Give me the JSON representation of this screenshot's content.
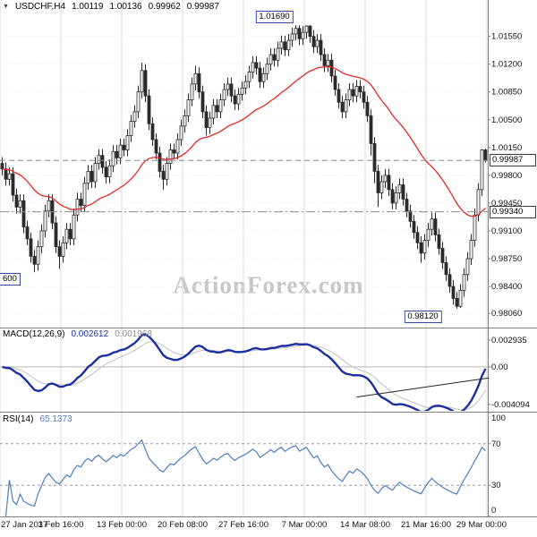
{
  "header": {
    "dropdown_icon": "▼",
    "symbol_period": "USDCHF,H4",
    "open": "1.00119",
    "high": "1.00136",
    "low": "0.99962",
    "close": "0.99987"
  },
  "watermark": "ActionForex.com",
  "indicators": {
    "macd": {
      "name": "MACD(12,26,9)",
      "value_main": "0.002612",
      "value_signal": "0.001968"
    },
    "rsi": {
      "name": "RSI(14)",
      "value": "65.1373"
    }
  },
  "annotations": {
    "swing_high": "1.01690",
    "swing_low": "0.98120",
    "left_level_partial": "600",
    "current_price": "0.99987",
    "dashed_level": "0.99340"
  },
  "axes": {
    "price_ticks": [
      "1.01550",
      "1.01200",
      "1.00850",
      "1.00500",
      "1.00150",
      "0.99800",
      "0.99450",
      "0.99100",
      "0.98750",
      "0.98400",
      "0.98060"
    ],
    "macd_ticks": [
      "0.002935",
      "0.00",
      "-0.004094"
    ],
    "rsi_ticks": [
      "100",
      "70",
      "30",
      "0"
    ],
    "time_labels": [
      "27 Jan 2017",
      "3 Feb 16:00",
      "13 Feb 00:00",
      "20 Feb 08:00",
      "27 Feb 16:00",
      "7 Mar 00:00",
      "14 Mar 08:00",
      "21 Mar 16:00",
      "29 Mar 00:00"
    ]
  },
  "colors": {
    "up": "#ffffff",
    "down": "#2a2a2a",
    "outline": "#2a2a2a",
    "ma": "#e02828",
    "macd": "#1a2fa0",
    "signal": "#c0c0c0",
    "rsi": "#4a7ebf",
    "grid": "#dddddd",
    "separator": "#808080",
    "dashed": "#8c8c8c",
    "box_border": "#3949ab",
    "watermark": "#c6c6c6"
  },
  "chart_data": {
    "type": "candlestick",
    "symbol": "USDCHF",
    "timeframe": "H4",
    "price_range": [
      0.9795,
      1.0185
    ],
    "time_label_indices": [
      0,
      17,
      34,
      51,
      68,
      85,
      102,
      119,
      136
    ],
    "levels": {
      "current_price": 0.99987,
      "dashed_level": 0.9934,
      "swing_high": 1.0169,
      "swing_low": 0.9812,
      "left_level": 0.986
    },
    "overlays": [
      {
        "name": "moving-average",
        "color": "#e02828"
      }
    ],
    "candles_ohlc": [
      [
        0.9995,
        1.0003,
        0.998,
        0.9988
      ],
      [
        0.9988,
        0.9996,
        0.9967,
        0.9975
      ],
      [
        0.9975,
        0.999,
        0.9967,
        0.9982
      ],
      [
        0.9982,
        0.999,
        0.9947,
        0.9955
      ],
      [
        0.9955,
        0.9963,
        0.9932,
        0.994
      ],
      [
        0.994,
        0.9956,
        0.9932,
        0.9948
      ],
      [
        0.9948,
        0.9956,
        0.9907,
        0.9915
      ],
      [
        0.9915,
        0.9923,
        0.9892,
        0.99
      ],
      [
        0.99,
        0.9908,
        0.987,
        0.9878
      ],
      [
        0.9878,
        0.9886,
        0.9858,
        0.9868
      ],
      [
        0.9868,
        0.9898,
        0.986,
        0.989
      ],
      [
        0.989,
        0.9918,
        0.9882,
        0.991
      ],
      [
        0.991,
        0.9943,
        0.9902,
        0.9935
      ],
      [
        0.9935,
        0.9956,
        0.9927,
        0.9948
      ],
      [
        0.9948,
        0.9956,
        0.9912,
        0.992
      ],
      [
        0.992,
        0.9928,
        0.9882,
        0.989
      ],
      [
        0.989,
        0.9898,
        0.9862,
        0.9878
      ],
      [
        0.9878,
        0.9903,
        0.987,
        0.9895
      ],
      [
        0.9895,
        0.992,
        0.9887,
        0.9912
      ],
      [
        0.9912,
        0.992,
        0.9892,
        0.99
      ],
      [
        0.99,
        0.9938,
        0.9892,
        0.993
      ],
      [
        0.993,
        0.9958,
        0.9922,
        0.995
      ],
      [
        0.995,
        0.9958,
        0.9934,
        0.9942
      ],
      [
        0.9942,
        0.9978,
        0.9934,
        0.997
      ],
      [
        0.997,
        0.9993,
        0.9962,
        0.9985
      ],
      [
        0.9985,
        0.9993,
        0.9964,
        0.9972
      ],
      [
        0.9972,
        1.0003,
        0.9964,
        0.9995
      ],
      [
        0.9995,
        1.0013,
        0.9987,
        1.0005
      ],
      [
        1.0005,
        1.0013,
        0.9982,
        0.999
      ],
      [
        0.999,
        0.9998,
        0.997,
        0.9978
      ],
      [
        0.9978,
        1.0,
        0.997,
        0.9992
      ],
      [
        0.9992,
        1.0018,
        0.9984,
        1.001
      ],
      [
        1.001,
        1.0018,
        0.9994,
        1.0002
      ],
      [
        1.0002,
        1.0026,
        0.9994,
        1.0018
      ],
      [
        1.0018,
        1.0026,
        1.0004,
        1.0012
      ],
      [
        1.0012,
        1.0038,
        1.0004,
        1.003
      ],
      [
        1.003,
        1.0056,
        1.0022,
        1.0048
      ],
      [
        1.0048,
        1.0068,
        1.004,
        1.006
      ],
      [
        1.006,
        1.0093,
        1.0052,
        1.0085
      ],
      [
        1.0085,
        1.0122,
        1.0077,
        1.0112
      ],
      [
        1.0112,
        1.012,
        1.0072,
        1.008
      ],
      [
        1.008,
        1.0088,
        1.0037,
        1.0045
      ],
      [
        1.0045,
        1.0053,
        1.0017,
        1.0025
      ],
      [
        1.0025,
        1.0033,
        1.0,
        1.0008
      ],
      [
        1.0008,
        1.0016,
        0.9977,
        0.9985
      ],
      [
        0.9985,
        0.9993,
        0.9962,
        0.9975
      ],
      [
        0.9975,
        1.0003,
        0.9967,
        0.9995
      ],
      [
        0.9995,
        1.002,
        0.9987,
        1.0012
      ],
      [
        1.0012,
        1.002,
        1.0,
        1.0008
      ],
      [
        1.0008,
        1.0033,
        1.0,
        1.0025
      ],
      [
        1.0025,
        1.005,
        1.0017,
        1.0042
      ],
      [
        1.0042,
        1.0063,
        1.0034,
        1.0055
      ],
      [
        1.0055,
        1.0083,
        1.0047,
        1.0075
      ],
      [
        1.0075,
        1.0103,
        1.0067,
        1.0095
      ],
      [
        1.0095,
        1.0118,
        1.0087,
        1.0108
      ],
      [
        1.0108,
        1.0116,
        1.0077,
        1.0085
      ],
      [
        1.0085,
        1.0093,
        1.0052,
        1.006
      ],
      [
        1.006,
        1.0068,
        1.003,
        1.004
      ],
      [
        1.004,
        1.006,
        1.0032,
        1.0052
      ],
      [
        1.0052,
        1.0076,
        1.0044,
        1.0068
      ],
      [
        1.0068,
        1.0076,
        1.0052,
        1.006
      ],
      [
        1.006,
        1.0083,
        1.0052,
        1.0075
      ],
      [
        1.0075,
        1.0096,
        1.0067,
        1.0088
      ],
      [
        1.0088,
        1.0103,
        1.008,
        1.0095
      ],
      [
        1.0095,
        1.0103,
        1.0072,
        1.008
      ],
      [
        1.008,
        1.0088,
        1.0062,
        1.007
      ],
      [
        1.007,
        1.009,
        1.0062,
        1.0082
      ],
      [
        1.0082,
        1.0098,
        1.0074,
        1.009
      ],
      [
        1.009,
        1.0106,
        1.0082,
        1.0098
      ],
      [
        1.0098,
        1.0118,
        1.009,
        1.011
      ],
      [
        1.011,
        1.013,
        1.0102,
        1.0122
      ],
      [
        1.0122,
        1.013,
        1.0107,
        1.0115
      ],
      [
        1.0115,
        1.0123,
        1.009,
        1.0098
      ],
      [
        1.0098,
        1.0116,
        1.009,
        1.0108
      ],
      [
        1.0108,
        1.0128,
        1.01,
        1.012
      ],
      [
        1.012,
        1.014,
        1.0112,
        1.0132
      ],
      [
        1.0132,
        1.014,
        1.0117,
        1.0125
      ],
      [
        1.0125,
        1.0148,
        1.0117,
        1.014
      ],
      [
        1.014,
        1.0156,
        1.0132,
        1.0148
      ],
      [
        1.0148,
        1.0156,
        1.013,
        1.0138
      ],
      [
        1.0138,
        1.0158,
        1.013,
        1.015
      ],
      [
        1.015,
        1.0166,
        1.0142,
        1.0158
      ],
      [
        1.0158,
        1.0169,
        1.015,
        1.0165
      ],
      [
        1.0165,
        1.0169,
        1.0144,
        1.0152
      ],
      [
        1.0152,
        1.0168,
        1.0144,
        1.016
      ],
      [
        1.016,
        1.0169,
        1.0152,
        1.0168
      ],
      [
        1.0168,
        1.0169,
        1.0147,
        1.0155
      ],
      [
        1.0155,
        1.0163,
        1.0134,
        1.0142
      ],
      [
        1.0142,
        1.0158,
        1.0134,
        1.015
      ],
      [
        1.015,
        1.0158,
        1.0124,
        1.0132
      ],
      [
        1.0132,
        1.014,
        1.011,
        1.0118
      ],
      [
        1.0118,
        1.0133,
        1.011,
        1.0125
      ],
      [
        1.0125,
        1.0133,
        1.0097,
        1.0105
      ],
      [
        1.0105,
        1.0113,
        1.008,
        1.0088
      ],
      [
        1.0088,
        1.0096,
        1.0064,
        1.0072
      ],
      [
        1.0072,
        1.008,
        1.0052,
        1.006
      ],
      [
        1.006,
        1.0083,
        1.0052,
        1.0075
      ],
      [
        1.0075,
        1.0096,
        1.0067,
        1.0088
      ],
      [
        1.0088,
        1.0096,
        1.0072,
        1.008
      ],
      [
        1.008,
        1.01,
        1.0072,
        1.0092
      ],
      [
        1.0092,
        1.01,
        1.0077,
        1.0085
      ],
      [
        1.0085,
        1.0093,
        1.0064,
        1.0072
      ],
      [
        1.0072,
        1.008,
        1.0047,
        1.0055
      ],
      [
        1.0055,
        1.0063,
        1.0005,
        1.002
      ],
      [
        1.002,
        1.0028,
        0.997,
        0.9985
      ],
      [
        0.9985,
        0.9993,
        0.994,
        0.9958
      ],
      [
        0.9958,
        0.998,
        0.995,
        0.9972
      ],
      [
        0.9972,
        0.9988,
        0.9964,
        0.998
      ],
      [
        0.998,
        0.9988,
        0.9954,
        0.9962
      ],
      [
        0.9962,
        0.997,
        0.9937,
        0.9945
      ],
      [
        0.9945,
        0.9966,
        0.9937,
        0.9958
      ],
      [
        0.9958,
        0.9976,
        0.995,
        0.9968
      ],
      [
        0.9968,
        0.9976,
        0.9942,
        0.995
      ],
      [
        0.995,
        0.9958,
        0.9927,
        0.9935
      ],
      [
        0.9935,
        0.9943,
        0.9914,
        0.9922
      ],
      [
        0.9922,
        0.993,
        0.99,
        0.9908
      ],
      [
        0.9908,
        0.9916,
        0.9887,
        0.9895
      ],
      [
        0.9895,
        0.9903,
        0.987,
        0.9882
      ],
      [
        0.9882,
        0.9906,
        0.9874,
        0.9898
      ],
      [
        0.9898,
        0.992,
        0.989,
        0.9912
      ],
      [
        0.9912,
        0.9933,
        0.9904,
        0.9925
      ],
      [
        0.9925,
        0.9933,
        0.9897,
        0.9905
      ],
      [
        0.9905,
        0.9913,
        0.988,
        0.9888
      ],
      [
        0.9888,
        0.9896,
        0.9862,
        0.987
      ],
      [
        0.987,
        0.9878,
        0.9847,
        0.9855
      ],
      [
        0.9855,
        0.9863,
        0.9832,
        0.984
      ],
      [
        0.984,
        0.9848,
        0.9817,
        0.9825
      ],
      [
        0.9825,
        0.9833,
        0.9812,
        0.9815
      ],
      [
        0.9815,
        0.9843,
        0.9813,
        0.9835
      ],
      [
        0.9835,
        0.9863,
        0.9827,
        0.9855
      ],
      [
        0.9855,
        0.9883,
        0.9847,
        0.9875
      ],
      [
        0.9875,
        0.9906,
        0.9867,
        0.9898
      ],
      [
        0.9898,
        0.9938,
        0.989,
        0.993
      ],
      [
        0.993,
        0.997,
        0.9922,
        0.9962
      ],
      [
        0.9962,
        1.0013,
        0.9954,
        1.0012
      ],
      [
        1.00119,
        1.00136,
        0.99962,
        0.99987
      ]
    ],
    "subpanels": [
      {
        "type": "macd",
        "label": "MACD(12,26,9)",
        "range": [
          -0.0047,
          0.0041
        ],
        "ticks": [
          0.002935,
          0,
          -0.004094
        ],
        "current_main": 0.002612,
        "current_signal": 0.001968,
        "trendline": {
          "from": [
            99,
            -0.0033
          ],
          "to": [
            136,
            -0.0012
          ]
        }
      },
      {
        "type": "rsi",
        "label": "RSI(14)",
        "current": 65.1373,
        "range": [
          0,
          100
        ],
        "tick_values": [
          100,
          70,
          30,
          0
        ],
        "guides": [
          70,
          30
        ]
      }
    ]
  }
}
